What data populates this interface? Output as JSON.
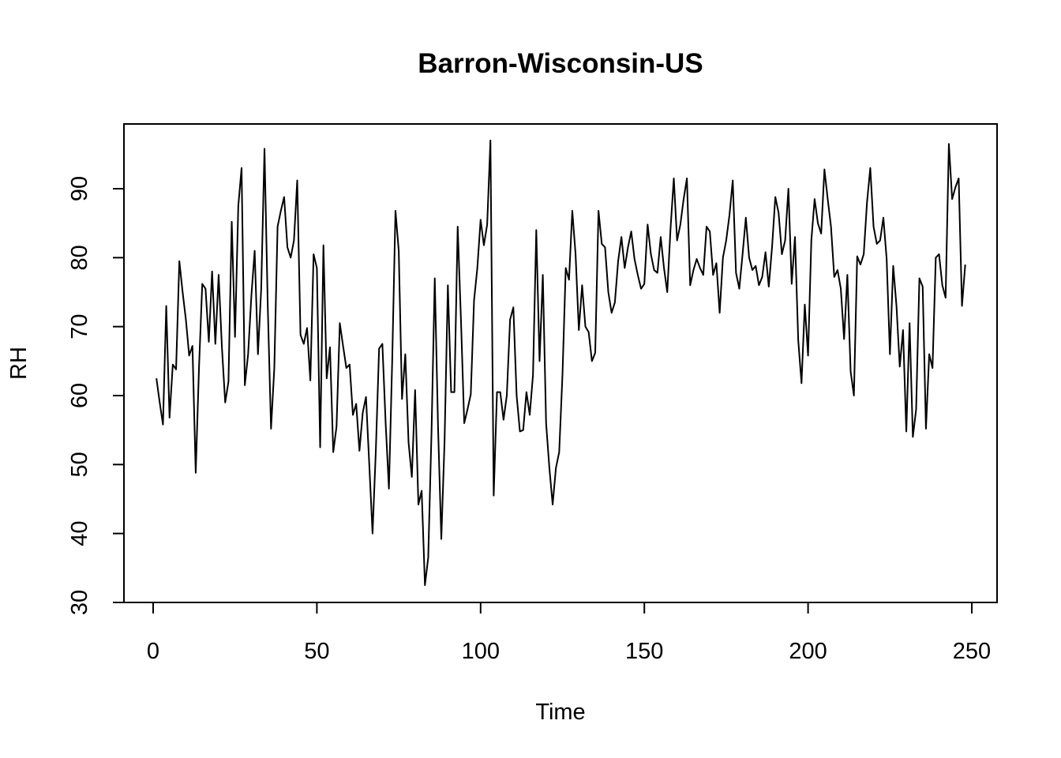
{
  "chart_data": {
    "type": "line",
    "title": "Barron-Wisconsin-US",
    "xlabel": "Time",
    "ylabel": "RH",
    "xlim": [
      0,
      250
    ],
    "ylim": [
      30,
      97
    ],
    "x_ticks": [
      0,
      50,
      100,
      150,
      200,
      250
    ],
    "y_ticks": [
      30,
      40,
      50,
      60,
      70,
      80,
      90
    ],
    "grid": false,
    "line_color": "#000000",
    "series": [
      {
        "values": [
          62.5,
          59,
          55.8,
          73,
          56.8,
          64.5,
          63.8,
          79.5,
          75,
          71,
          65.8,
          67.2,
          48.8,
          64,
          76.2,
          75.5,
          67.8,
          78,
          67.5,
          77.5,
          67,
          59,
          62,
          85.2,
          68.5,
          87.5,
          93,
          61.5,
          66,
          74.5,
          81,
          66,
          75.5,
          95.8,
          73,
          55.2,
          64,
          84.5,
          86.8,
          88.8,
          81.5,
          80,
          82.5,
          91.2,
          68.8,
          67.5,
          69.8,
          62.2,
          80.5,
          78.5,
          52.5,
          81.8,
          62.5,
          67,
          51.8,
          55.5,
          70.5,
          67.2,
          64,
          64.5,
          57.2,
          58.8,
          52,
          57.5,
          59.8,
          50,
          40,
          52,
          66.8,
          67.5,
          56,
          46.5,
          65,
          86.8,
          81,
          59.5,
          66,
          53.2,
          48.2,
          60.8,
          44.2,
          46.2,
          32.5,
          36.5,
          54.5,
          77,
          55.5,
          39.2,
          53.5,
          76,
          60.5,
          60.5,
          84.5,
          71,
          56,
          58,
          60.2,
          73.8,
          78.5,
          85.5,
          81.8,
          84.8,
          97,
          45.5,
          60.5,
          60.5,
          56.5,
          60,
          71,
          72.8,
          60,
          54.8,
          55,
          60.5,
          57.2,
          63,
          84,
          65,
          77.5,
          56,
          49.5,
          44.2,
          49.5,
          51.8,
          63,
          78.5,
          76.8,
          86.8,
          80.5,
          69.5,
          76,
          70,
          69.2,
          65,
          66.2,
          86.8,
          82,
          81.5,
          75,
          72,
          73.5,
          79.5,
          83,
          78.5,
          81.5,
          83.8,
          79.8,
          77.5,
          75.5,
          76.2,
          84.8,
          80.5,
          78.2,
          77.8,
          83,
          78.5,
          75,
          84.2,
          91.5,
          82.5,
          84.8,
          88.5,
          91.5,
          76,
          78.2,
          79.8,
          78.5,
          77.5,
          84.5,
          83.8,
          77.5,
          79.2,
          72,
          80,
          82.5,
          86.2,
          91.2,
          77.8,
          75.5,
          80.5,
          85.8,
          80,
          78.2,
          78.8,
          76,
          77.2,
          80.8,
          75.8,
          81.5,
          88.8,
          86.5,
          80.5,
          82.5,
          90,
          76.2,
          83,
          68,
          61.8,
          73.2,
          65.8,
          82.5,
          88.5,
          85,
          83.5,
          92.8,
          88.5,
          84.5,
          77.2,
          78.2,
          75.5,
          68.2,
          77.5,
          63.5,
          60,
          80.2,
          79,
          80.5,
          88,
          93,
          84.5,
          82,
          82.5,
          85.8,
          79.8,
          66,
          78.8,
          73,
          64.2,
          69.5,
          54.8,
          70.5,
          54,
          58,
          77,
          75.8,
          55.2,
          66,
          64,
          80,
          80.5,
          76,
          74.2,
          96.5,
          88.5,
          90.2,
          91.5,
          73,
          79
        ]
      }
    ]
  }
}
